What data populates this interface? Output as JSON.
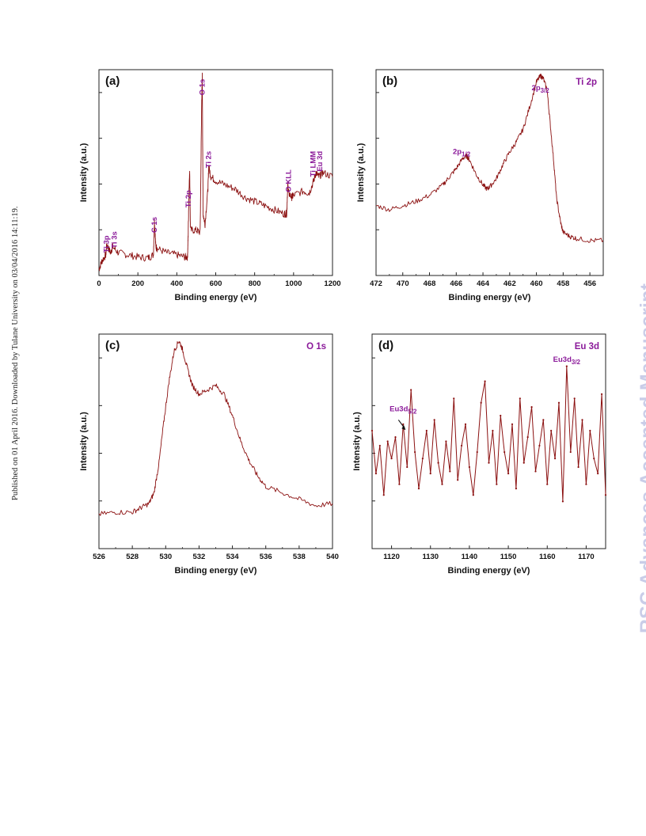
{
  "side_note": "Published on 01 April 2016. Downloaded by Tulane University on 03/04/2016 14:11:19.",
  "watermark": "RSC Advances Accepted Manuscript",
  "colors": {
    "line": "#8b1010",
    "label": "#8b1a9a",
    "watermark": "#c9cde8"
  },
  "chart_data": [
    {
      "panel": "(a)",
      "type": "line",
      "xlabel": "Binding energy (eV)",
      "ylabel": "Intensity (a.u.)",
      "xlim": [
        0,
        1200
      ],
      "xticks": [
        0,
        200,
        400,
        600,
        800,
        1000,
        1200
      ],
      "ylim": [
        0,
        1
      ],
      "series": [
        {
          "x": [
            0,
            15,
            35,
            40,
            60,
            70,
            100,
            150,
            200,
            250,
            280,
            285,
            292,
            300,
            350,
            400,
            440,
            455,
            458,
            462,
            466,
            470,
            500,
            520,
            528,
            531,
            535,
            545,
            560,
            564,
            575,
            600,
            650,
            700,
            750,
            800,
            850,
            900,
            950,
            965,
            970,
            975,
            990,
            1000,
            1050,
            1080,
            1100,
            1115,
            1130,
            1150,
            1200
          ],
          "y": [
            0.03,
            0.07,
            0.1,
            0.15,
            0.11,
            0.14,
            0.11,
            0.1,
            0.09,
            0.085,
            0.1,
            0.27,
            0.14,
            0.13,
            0.11,
            0.1,
            0.09,
            0.09,
            0.18,
            0.38,
            0.52,
            0.22,
            0.22,
            0.21,
            0.85,
            0.97,
            0.3,
            0.25,
            0.42,
            0.53,
            0.48,
            0.46,
            0.44,
            0.42,
            0.38,
            0.36,
            0.34,
            0.32,
            0.3,
            0.3,
            0.44,
            0.4,
            0.38,
            0.39,
            0.41,
            0.4,
            0.45,
            0.5,
            0.48,
            0.5,
            0.48
          ]
        }
      ],
      "peak_labels": [
        {
          "text": "Ti 3p",
          "x": 38
        },
        {
          "text": "Ti 3s",
          "x": 80
        },
        {
          "text": "C 1s",
          "x": 285
        },
        {
          "text": "Ti 2p",
          "x": 460
        },
        {
          "text": "O 1s",
          "x": 531
        },
        {
          "text": "Ti 2s",
          "x": 564
        },
        {
          "text": "O KLL",
          "x": 975
        },
        {
          "text": "Ti LMM",
          "x": 1100
        },
        {
          "text": "Eu 3d",
          "x": 1135
        }
      ]
    },
    {
      "panel": "(b)",
      "type": "line",
      "title": "Ti 2p",
      "xlabel": "Binding energy (eV)",
      "ylabel": "Intensity (a.u.)",
      "xlim": [
        472,
        455
      ],
      "xticks": [
        472,
        470,
        468,
        466,
        464,
        462,
        460,
        458,
        456
      ],
      "ylim": [
        0,
        1
      ],
      "series": [
        {
          "x": [
            472,
            471,
            470,
            469,
            468,
            467,
            466.5,
            466,
            465.5,
            465.2,
            465,
            464.5,
            464,
            463.7,
            463.5,
            463,
            462.5,
            462,
            461.5,
            461,
            460.5,
            460,
            459.7,
            459.5,
            459.2,
            459,
            458.7,
            458.5,
            458.2,
            458,
            457.5,
            457,
            456,
            455
          ],
          "y": [
            0.34,
            0.32,
            0.34,
            0.36,
            0.39,
            0.44,
            0.48,
            0.52,
            0.57,
            0.58,
            0.56,
            0.49,
            0.44,
            0.42,
            0.43,
            0.47,
            0.54,
            0.6,
            0.65,
            0.71,
            0.82,
            0.94,
            0.97,
            0.96,
            0.9,
            0.76,
            0.55,
            0.38,
            0.26,
            0.21,
            0.19,
            0.18,
            0.17,
            0.17
          ]
        }
      ],
      "peak_labels": [
        {
          "text": "2p",
          "sub": "1/2",
          "x": 465.6
        },
        {
          "text": "2p",
          "sub": "3/2",
          "x": 459.7
        }
      ]
    },
    {
      "panel": "(c)",
      "type": "line",
      "title": "O 1s",
      "xlabel": "Binding energy (eV)",
      "ylabel": "Intensity (a.u.)",
      "xlim": [
        526,
        540
      ],
      "xticks": [
        526,
        528,
        530,
        532,
        534,
        536,
        538,
        540
      ],
      "ylim": [
        0,
        1
      ],
      "series": [
        {
          "x": [
            526,
            527,
            528,
            528.5,
            529,
            529.3,
            529.6,
            529.9,
            530.2,
            530.5,
            530.8,
            531,
            531.3,
            531.6,
            532,
            532.5,
            533,
            533.5,
            534,
            534.5,
            535,
            535.5,
            536,
            537,
            538,
            539,
            540
          ],
          "y": [
            0.16,
            0.17,
            0.17,
            0.19,
            0.21,
            0.26,
            0.4,
            0.6,
            0.78,
            0.92,
            0.97,
            0.93,
            0.84,
            0.76,
            0.72,
            0.74,
            0.76,
            0.72,
            0.62,
            0.5,
            0.41,
            0.34,
            0.29,
            0.26,
            0.23,
            0.2,
            0.21
          ]
        }
      ]
    },
    {
      "panel": "(d)",
      "type": "line",
      "title": "Eu 3d",
      "xlabel": "Binding energy (eV)",
      "ylabel": "Intensity (a.u.)",
      "xlim": [
        1115,
        1175
      ],
      "xticks": [
        1120,
        1130,
        1140,
        1150,
        1160,
        1170
      ],
      "ylim": [
        0,
        1
      ],
      "series": [
        {
          "x": [
            1115,
            1116,
            1117,
            1118,
            1119,
            1120,
            1121,
            1122,
            1123,
            1124,
            1125,
            1126,
            1127,
            1128,
            1129,
            1130,
            1131,
            1132,
            1133,
            1134,
            1135,
            1136,
            1137,
            1138,
            1139,
            1140,
            1141,
            1142,
            1143,
            1144,
            1145,
            1146,
            1147,
            1148,
            1149,
            1150,
            1151,
            1152,
            1153,
            1154,
            1155,
            1156,
            1157,
            1158,
            1159,
            1160,
            1161,
            1162,
            1163,
            1164,
            1165,
            1166,
            1167,
            1168,
            1169,
            1170,
            1171,
            1172,
            1173,
            1174,
            1175
          ],
          "y": [
            0.55,
            0.35,
            0.48,
            0.25,
            0.5,
            0.42,
            0.52,
            0.3,
            0.58,
            0.38,
            0.74,
            0.45,
            0.28,
            0.42,
            0.55,
            0.35,
            0.6,
            0.4,
            0.3,
            0.5,
            0.36,
            0.7,
            0.32,
            0.48,
            0.58,
            0.38,
            0.25,
            0.45,
            0.68,
            0.78,
            0.4,
            0.55,
            0.3,
            0.62,
            0.45,
            0.35,
            0.58,
            0.28,
            0.7,
            0.4,
            0.52,
            0.66,
            0.36,
            0.48,
            0.6,
            0.3,
            0.55,
            0.42,
            0.68,
            0.22,
            0.85,
            0.45,
            0.7,
            0.38,
            0.6,
            0.3,
            0.55,
            0.42,
            0.35,
            0.72,
            0.25
          ]
        }
      ],
      "peak_labels": [
        {
          "text": "Eu3d",
          "sub": "5/2",
          "x": 1123
        },
        {
          "text": "Eu3d",
          "sub": "3/2",
          "x": 1165
        }
      ]
    }
  ]
}
